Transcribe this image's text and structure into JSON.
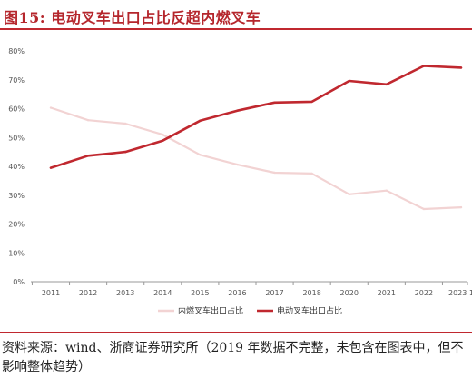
{
  "title": "图15:   电动叉车出口占比反超内燃叉车",
  "source": "资料来源：wind、浙商证券研究所（2019 年数据不完整，未包含在图表中，但不影响整体趋势）",
  "colors": {
    "accent": "#c0282f",
    "ice": "#f2d3d3",
    "electric": "#c0282f"
  },
  "chart_data": {
    "type": "line",
    "categories": [
      "2011",
      "2012",
      "2013",
      "2014",
      "2015",
      "2016",
      "2017",
      "2018",
      "2020",
      "2021",
      "2022",
      "2023 1"
    ],
    "ylim": [
      0,
      80
    ],
    "yticks": [
      "0%",
      "10%",
      "20%",
      "30%",
      "40%",
      "50%",
      "60%",
      "70%",
      "80%"
    ],
    "grid": false,
    "legend_position": "bottom",
    "series": [
      {
        "name": "内燃叉车出口占比",
        "color": "#f2d3d3",
        "values": [
          60.3,
          56.0,
          54.8,
          51.0,
          44.0,
          40.6,
          37.8,
          37.5,
          30.3,
          31.6,
          25.2,
          25.8
        ]
      },
      {
        "name": "电动叉车出口占比",
        "color": "#c0282f",
        "values": [
          39.5,
          43.7,
          45.0,
          48.9,
          55.8,
          59.3,
          62.1,
          62.4,
          69.6,
          68.4,
          74.8,
          74.2
        ]
      }
    ]
  }
}
